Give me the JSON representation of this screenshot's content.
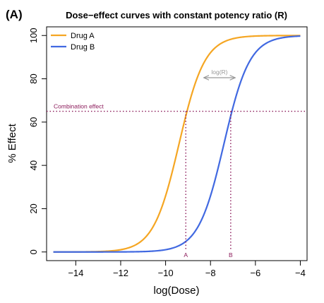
{
  "chart_data": {
    "type": "line",
    "panel_label": "(A)",
    "title": "Dose−effect curves with constant potency ratio (R)",
    "xlabel": "log(Dose)",
    "ylabel": "% Effect",
    "xlim": [
      -15.3,
      -3.7
    ],
    "ylim": [
      -4,
      104
    ],
    "xticks": [
      -14,
      -12,
      -10,
      -8,
      -6,
      -4
    ],
    "xtick_labels": [
      "−14",
      "−12",
      "−10",
      "−8",
      "−6",
      "−4"
    ],
    "yticks": [
      0,
      20,
      40,
      60,
      80,
      100
    ],
    "ytick_labels": [
      "0",
      "20",
      "40",
      "60",
      "80",
      "100"
    ],
    "grid": false,
    "legend": "top-left",
    "series": [
      {
        "name": "Drug A",
        "color": "#F5A623",
        "ec50": -9.4,
        "hill": 0.95,
        "x_range": [
          -15,
          -4
        ]
      },
      {
        "name": "Drug B",
        "color": "#4169E1",
        "ec50": -7.4,
        "hill": 0.95,
        "x_range": [
          -15,
          -4
        ]
      }
    ],
    "combination_effect": {
      "label": "Combination effect",
      "y": 65,
      "color": "#8B1A5A"
    },
    "dose_markers": [
      {
        "label": "A",
        "x": -9.1
      },
      {
        "label": "B",
        "x": -7.1
      }
    ],
    "potency_arrow": {
      "label": "log(R)",
      "x_from": -8.3,
      "x_to": -6.9,
      "y": 80.5,
      "color": "#999999"
    }
  }
}
